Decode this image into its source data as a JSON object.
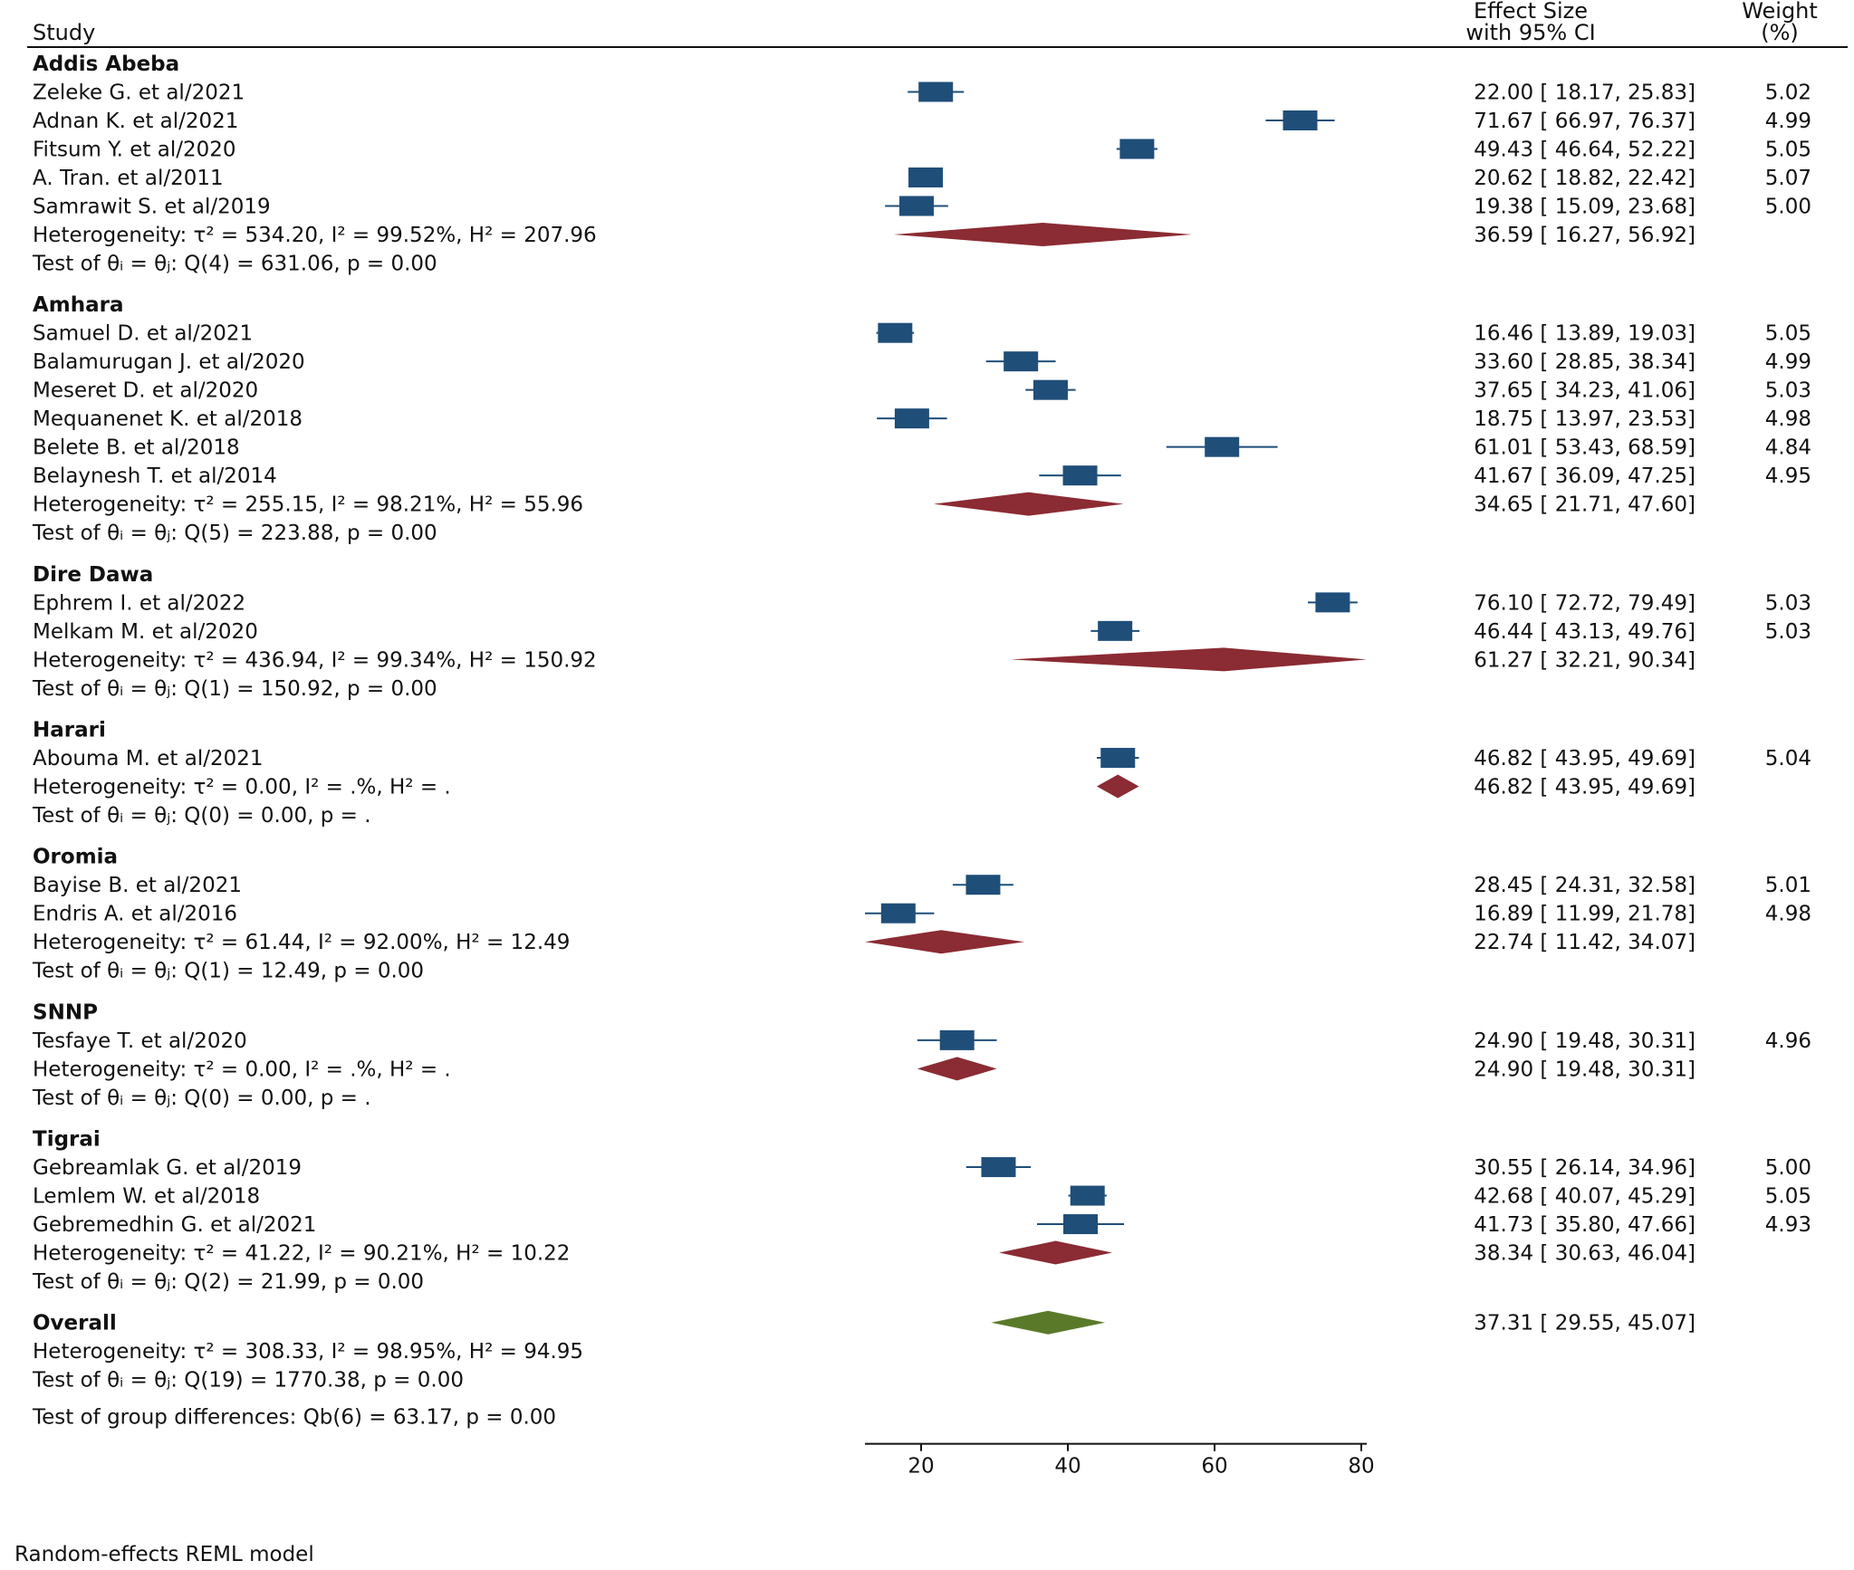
{
  "header": {
    "study": "Study",
    "effect_line1": "Effect Size",
    "effect_line2": "with 95% CI",
    "weight_line1": "Weight",
    "weight_line2": "(%)"
  },
  "chart_data": {
    "type": "forest",
    "model_note": "Random-effects REML model",
    "xlim": [
      14,
      80
    ],
    "xticks": [
      20,
      40,
      60,
      80
    ],
    "colors": {
      "study_box": "#1f4e79",
      "subgroup_diamond": "#8b2b33",
      "overall_diamond": "#5a7a2a"
    },
    "groups": [
      {
        "name": "Addis Abeba",
        "studies": [
          {
            "label": "Zeleke G. et al/2021",
            "es": 22.0,
            "lo": 18.17,
            "hi": 25.83,
            "text": "22.00 [  18.17,  25.83]",
            "weight": "5.02"
          },
          {
            "label": "Adnan K. et al/2021",
            "es": 71.67,
            "lo": 66.97,
            "hi": 76.37,
            "text": "71.67 [  66.97,  76.37]",
            "weight": "4.99"
          },
          {
            "label": "Fitsum Y. et al/2020",
            "es": 49.43,
            "lo": 46.64,
            "hi": 52.22,
            "text": "49.43 [  46.64,  52.22]",
            "weight": "5.05"
          },
          {
            "label": "A. Tran. et al/2011",
            "es": 20.62,
            "lo": 18.82,
            "hi": 22.42,
            "text": "20.62 [  18.82,  22.42]",
            "weight": "5.07"
          },
          {
            "label": "Samrawit S. et al/2019",
            "es": 19.38,
            "lo": 15.09,
            "hi": 23.68,
            "text": "19.38 [  15.09,  23.68]",
            "weight": "5.00"
          }
        ],
        "summary": {
          "es": 36.59,
          "lo": 16.27,
          "hi": 56.92,
          "text": "36.59 [  16.27,  56.92]"
        },
        "heterogeneity": "Heterogeneity: τ² = 534.20, I² = 99.52%, H² = 207.96",
        "test": "Test of θᵢ = θⱼ: Q(4) = 631.06, p = 0.00"
      },
      {
        "name": "Amhara",
        "studies": [
          {
            "label": "Samuel D. et al/2021",
            "es": 16.46,
            "lo": 13.89,
            "hi": 19.03,
            "text": "16.46 [  13.89,  19.03]",
            "weight": "5.05"
          },
          {
            "label": "Balamurugan J. et al/2020",
            "es": 33.6,
            "lo": 28.85,
            "hi": 38.34,
            "text": "33.60 [  28.85,  38.34]",
            "weight": "4.99"
          },
          {
            "label": "Meseret D. et al/2020",
            "es": 37.65,
            "lo": 34.23,
            "hi": 41.06,
            "text": "37.65 [  34.23,  41.06]",
            "weight": "5.03"
          },
          {
            "label": "Mequanenet K. et al/2018",
            "es": 18.75,
            "lo": 13.97,
            "hi": 23.53,
            "text": "18.75 [  13.97,  23.53]",
            "weight": "4.98"
          },
          {
            "label": "Belete B. et al/2018",
            "es": 61.01,
            "lo": 53.43,
            "hi": 68.59,
            "text": "61.01 [  53.43,  68.59]",
            "weight": "4.84"
          },
          {
            "label": "Belaynesh T. et al/2014",
            "es": 41.67,
            "lo": 36.09,
            "hi": 47.25,
            "text": "41.67 [  36.09,  47.25]",
            "weight": "4.95"
          }
        ],
        "summary": {
          "es": 34.65,
          "lo": 21.71,
          "hi": 47.6,
          "text": "34.65 [  21.71,  47.60]"
        },
        "heterogeneity": "Heterogeneity: τ² = 255.15, I² = 98.21%, H² = 55.96",
        "test": "Test of θᵢ = θⱼ: Q(5) = 223.88, p = 0.00"
      },
      {
        "name": "Dire Dawa",
        "studies": [
          {
            "label": "Ephrem I. et al/2022",
            "es": 76.1,
            "lo": 72.72,
            "hi": 79.49,
            "text": "76.10 [  72.72,  79.49]",
            "weight": "5.03"
          },
          {
            "label": "Melkam M. et al/2020",
            "es": 46.44,
            "lo": 43.13,
            "hi": 49.76,
            "text": "46.44 [  43.13,  49.76]",
            "weight": "5.03"
          }
        ],
        "summary": {
          "es": 61.27,
          "lo": 32.21,
          "hi": 90.34,
          "text": "61.27 [  32.21,  90.34]"
        },
        "heterogeneity": "Heterogeneity: τ² = 436.94, I² = 99.34%, H² = 150.92",
        "test": "Test of θᵢ = θⱼ: Q(1) = 150.92, p = 0.00"
      },
      {
        "name": "Harari",
        "studies": [
          {
            "label": "Abouma M. et al/2021",
            "es": 46.82,
            "lo": 43.95,
            "hi": 49.69,
            "text": "46.82 [  43.95,  49.69]",
            "weight": "5.04"
          }
        ],
        "summary": {
          "es": 46.82,
          "lo": 43.95,
          "hi": 49.69,
          "text": "46.82 [  43.95,  49.69]"
        },
        "heterogeneity": "Heterogeneity: τ² = 0.00, I² = .%, H² = .",
        "test": "Test of θᵢ = θⱼ: Q(0) = 0.00, p = ."
      },
      {
        "name": "Oromia",
        "studies": [
          {
            "label": "Bayise B. et al/2021",
            "es": 28.45,
            "lo": 24.31,
            "hi": 32.58,
            "text": "28.45 [  24.31,  32.58]",
            "weight": "5.01"
          },
          {
            "label": "Endris A. et al/2016",
            "es": 16.89,
            "lo": 11.99,
            "hi": 21.78,
            "text": "16.89 [  11.99,  21.78]",
            "weight": "4.98"
          }
        ],
        "summary": {
          "es": 22.74,
          "lo": 11.42,
          "hi": 34.07,
          "text": "22.74 [  11.42,  34.07]"
        },
        "heterogeneity": "Heterogeneity: τ² = 61.44, I² = 92.00%, H² = 12.49",
        "test": "Test of θᵢ = θⱼ: Q(1) = 12.49, p = 0.00"
      },
      {
        "name": "SNNP",
        "studies": [
          {
            "label": "Tesfaye T. et al/2020",
            "es": 24.9,
            "lo": 19.48,
            "hi": 30.31,
            "text": "24.90 [  19.48,  30.31]",
            "weight": "4.96"
          }
        ],
        "summary": {
          "es": 24.9,
          "lo": 19.48,
          "hi": 30.31,
          "text": "24.90 [  19.48,  30.31]"
        },
        "heterogeneity": "Heterogeneity: τ² = 0.00, I² = .%, H² = .",
        "test": "Test of θᵢ = θⱼ: Q(0) = 0.00, p = ."
      },
      {
        "name": "Tigrai",
        "studies": [
          {
            "label": "Gebreamlak G. et al/2019",
            "es": 30.55,
            "lo": 26.14,
            "hi": 34.96,
            "text": "30.55 [  26.14,  34.96]",
            "weight": "5.00"
          },
          {
            "label": "Lemlem W. et al/2018",
            "es": 42.68,
            "lo": 40.07,
            "hi": 45.29,
            "text": "42.68 [  40.07,  45.29]",
            "weight": "5.05"
          },
          {
            "label": "Gebremedhin G. et al/2021",
            "es": 41.73,
            "lo": 35.8,
            "hi": 47.66,
            "text": "41.73 [  35.80,  47.66]",
            "weight": "4.93"
          }
        ],
        "summary": {
          "es": 38.34,
          "lo": 30.63,
          "hi": 46.04,
          "text": "38.34 [  30.63,  46.04]"
        },
        "heterogeneity": "Heterogeneity: τ² = 41.22, I² = 90.21%, H² = 10.22",
        "test": "Test of θᵢ = θⱼ: Q(2) = 21.99, p = 0.00"
      }
    ],
    "overall": {
      "label": "Overall",
      "es": 37.31,
      "lo": 29.55,
      "hi": 45.07,
      "text": "37.31 [  29.55,  45.07]",
      "heterogeneity": "Heterogeneity: τ² = 308.33, I² = 98.95%, H² = 94.95",
      "test": "Test of θᵢ = θⱼ: Q(19) = 1770.38, p = 0.00",
      "group_test": "Test of group differences: Qb(6) = 63.17, p = 0.00"
    }
  }
}
